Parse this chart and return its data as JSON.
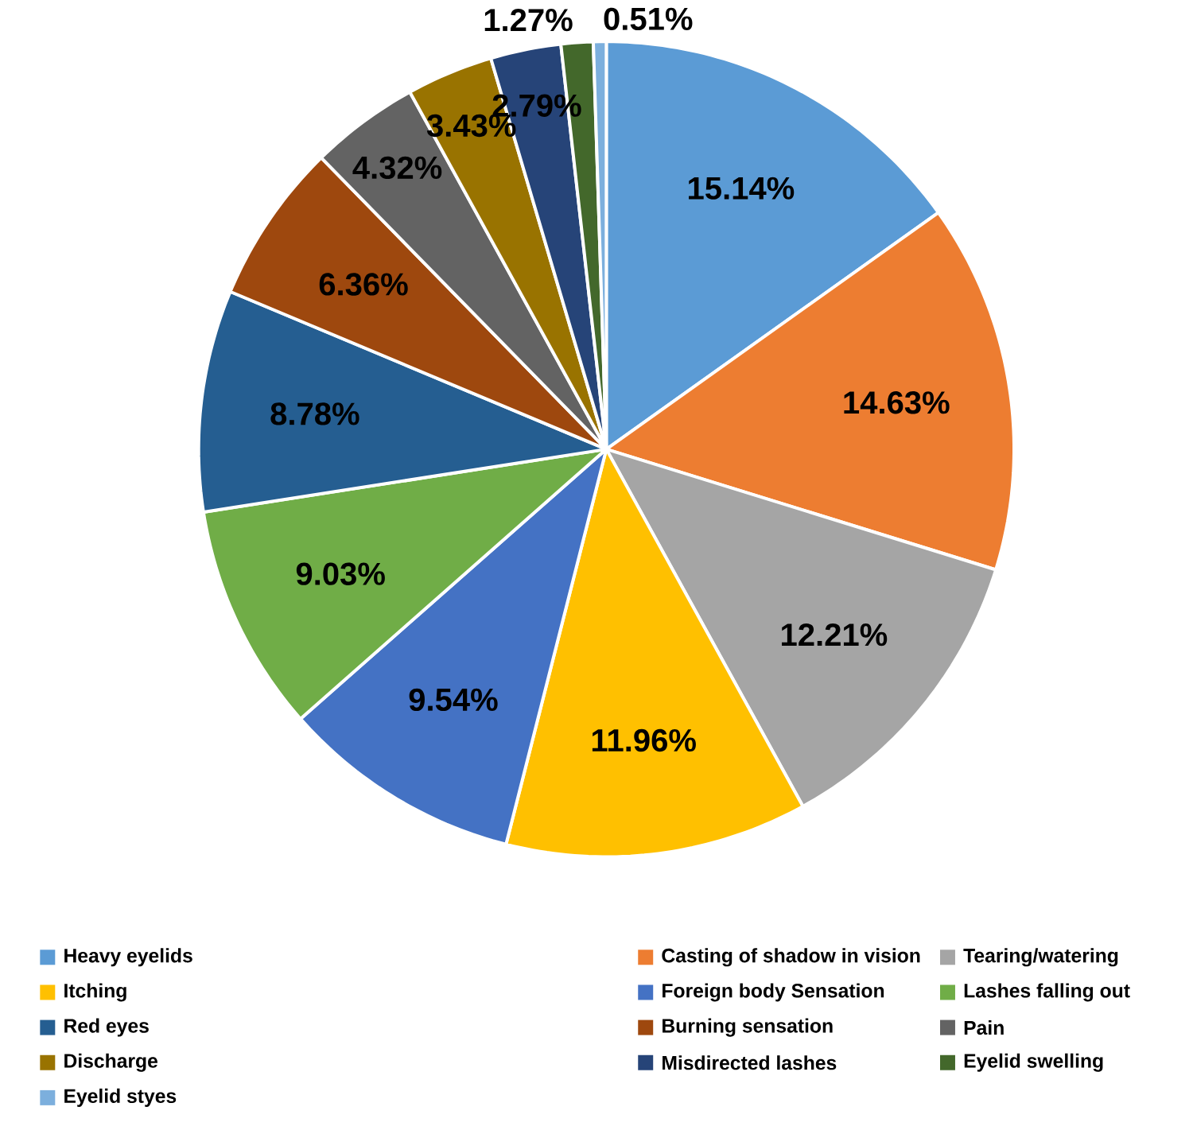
{
  "chart_data": {
    "type": "pie",
    "categories": [
      "Heavy eyelids",
      "Casting of shadow in vision",
      "Tearing/watering",
      "Itching",
      "Foreign body Sensation",
      "Lashes falling out",
      "Red eyes",
      "Burning sensation",
      "Pain",
      "Discharge",
      "Misdirected lashes",
      "Eyelid swelling",
      "Eyelid styes"
    ],
    "values": [
      15.14,
      14.63,
      12.21,
      11.96,
      9.54,
      9.03,
      8.78,
      6.36,
      4.32,
      3.43,
      2.79,
      1.27,
      0.51
    ],
    "value_labels": [
      "15.14%",
      "14.63%",
      "12.21%",
      "11.96%",
      "9.54%",
      "9.03%",
      "8.78%",
      "6.36%",
      "4.32%",
      "3.43%",
      "2.79%",
      "1.27%",
      "0.51%"
    ],
    "colors": [
      "#5b9bd5",
      "#ed7d31",
      "#a5a5a5",
      "#ffc000",
      "#4472c4",
      "#70ad47",
      "#255e91",
      "#9e480e",
      "#636363",
      "#997300",
      "#264478",
      "#43682b",
      "#7cafdd"
    ],
    "legend": "bottom"
  }
}
